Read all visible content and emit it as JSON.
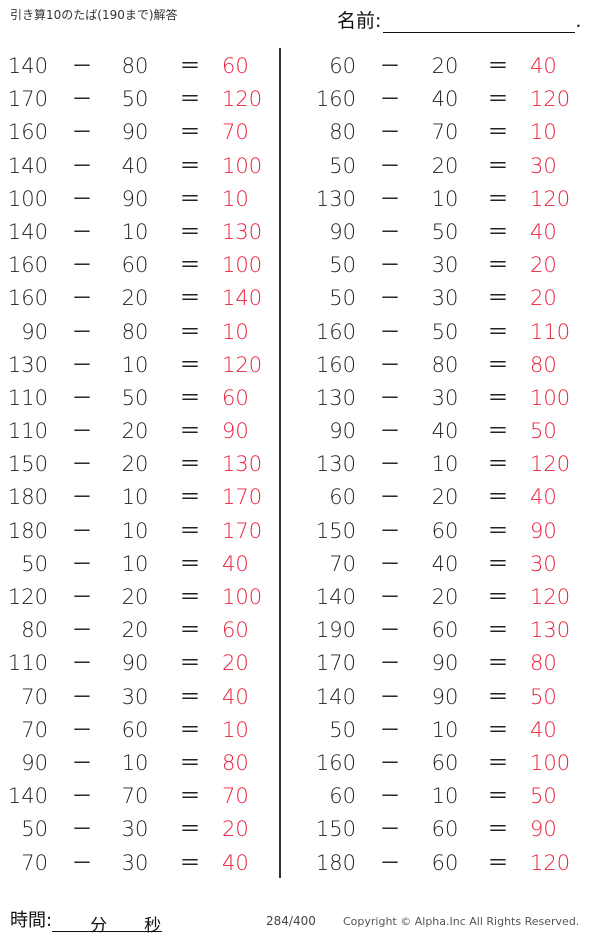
{
  "header": {
    "title": "引き算10のたば(190まで)解答",
    "name_label": "名前:",
    "name_end": "."
  },
  "operators": {
    "minus": "－",
    "equals": "＝"
  },
  "colors": {
    "answer": "#e8203a",
    "text": "#222222"
  },
  "left": [
    [
      "140",
      "80",
      "60"
    ],
    [
      "170",
      "50",
      "120"
    ],
    [
      "160",
      "90",
      "70"
    ],
    [
      "140",
      "40",
      "100"
    ],
    [
      "100",
      "90",
      "10"
    ],
    [
      "140",
      "10",
      "130"
    ],
    [
      "160",
      "60",
      "100"
    ],
    [
      "160",
      "20",
      "140"
    ],
    [
      "90",
      "80",
      "10"
    ],
    [
      "130",
      "10",
      "120"
    ],
    [
      "110",
      "50",
      "60"
    ],
    [
      "110",
      "20",
      "90"
    ],
    [
      "150",
      "20",
      "130"
    ],
    [
      "180",
      "10",
      "170"
    ],
    [
      "180",
      "10",
      "170"
    ],
    [
      "50",
      "10",
      "40"
    ],
    [
      "120",
      "20",
      "100"
    ],
    [
      "80",
      "20",
      "60"
    ],
    [
      "110",
      "90",
      "20"
    ],
    [
      "70",
      "30",
      "40"
    ],
    [
      "70",
      "60",
      "10"
    ],
    [
      "90",
      "10",
      "80"
    ],
    [
      "140",
      "70",
      "70"
    ],
    [
      "50",
      "30",
      "20"
    ],
    [
      "70",
      "30",
      "40"
    ]
  ],
  "right": [
    [
      "60",
      "20",
      "40"
    ],
    [
      "160",
      "40",
      "120"
    ],
    [
      "80",
      "70",
      "10"
    ],
    [
      "50",
      "20",
      "30"
    ],
    [
      "130",
      "10",
      "120"
    ],
    [
      "90",
      "50",
      "40"
    ],
    [
      "50",
      "30",
      "20"
    ],
    [
      "50",
      "30",
      "20"
    ],
    [
      "160",
      "50",
      "110"
    ],
    [
      "160",
      "80",
      "80"
    ],
    [
      "130",
      "30",
      "100"
    ],
    [
      "90",
      "40",
      "50"
    ],
    [
      "130",
      "10",
      "120"
    ],
    [
      "60",
      "20",
      "40"
    ],
    [
      "150",
      "60",
      "90"
    ],
    [
      "70",
      "40",
      "30"
    ],
    [
      "140",
      "20",
      "120"
    ],
    [
      "190",
      "60",
      "130"
    ],
    [
      "170",
      "90",
      "80"
    ],
    [
      "140",
      "90",
      "50"
    ],
    [
      "50",
      "10",
      "40"
    ],
    [
      "160",
      "60",
      "100"
    ],
    [
      "60",
      "10",
      "50"
    ],
    [
      "150",
      "60",
      "90"
    ],
    [
      "180",
      "60",
      "120"
    ]
  ],
  "footer": {
    "time_label": "時間:",
    "minutes": "分",
    "seconds": "秒",
    "page": "284/400",
    "copyright": "Copyright ©  Alpha.Inc All Rights Reserved."
  }
}
